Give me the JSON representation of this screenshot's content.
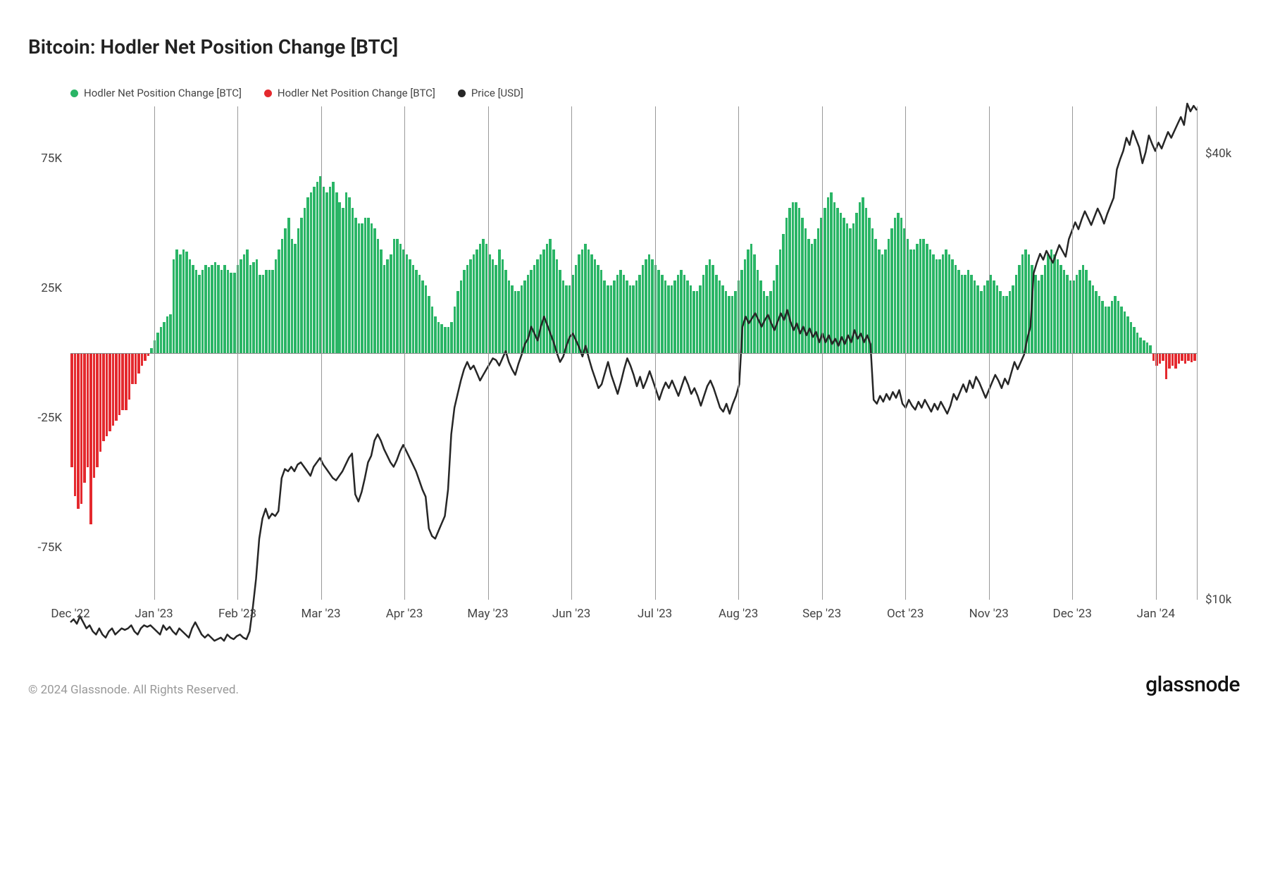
{
  "title": "Bitcoin: Hodler Net Position Change [BTC]",
  "legend": [
    {
      "label": "Hodler Net Position Change [BTC]",
      "color": "#2ab566"
    },
    {
      "label": "Hodler Net Position Change [BTC]",
      "color": "#e4292e"
    },
    {
      "label": "Price [USD]",
      "color": "#262626"
    }
  ],
  "copyright": "© 2024 Glassnode. All Rights Reserved.",
  "brand": "glassnode",
  "colors": {
    "positive_bar": "#2ab566",
    "negative_bar": "#e4292e",
    "price_line": "#262626",
    "background": "#ffffff",
    "grid": "#999999",
    "text": "#444444"
  },
  "y_left": {
    "min": -95000,
    "max": 95000,
    "ticks": [
      {
        "v": 75000,
        "label": "75K"
      },
      {
        "v": 25000,
        "label": "25K"
      },
      {
        "v": -25000,
        "label": "-25K"
      },
      {
        "v": -75000,
        "label": "-75K"
      }
    ]
  },
  "y_right": {
    "type": "log",
    "min_log": 4.0,
    "max_log": 4.666,
    "ticks": [
      {
        "v": 40000,
        "label": "$40k"
      },
      {
        "v": 10000,
        "label": "$10k"
      }
    ]
  },
  "x": {
    "labels": [
      "Dec '22",
      "Jan '23",
      "Feb '23",
      "Mar '23",
      "Apr '23",
      "May '23",
      "Jun '23",
      "Jul '23",
      "Aug '23",
      "Sep '23",
      "Oct '23",
      "Nov '23",
      "Dec '23",
      "Jan '24"
    ]
  },
  "bars": [
    -44000,
    -55000,
    -60000,
    -58000,
    -50000,
    -44000,
    -66000,
    -48000,
    -44000,
    -38000,
    -34000,
    -32000,
    -30000,
    -28000,
    -26000,
    -24000,
    -22000,
    -22000,
    -18000,
    -12000,
    -12000,
    -8000,
    -5000,
    -3000,
    -1000,
    2000,
    5000,
    8000,
    10000,
    12000,
    14000,
    15000,
    36000,
    40000,
    38000,
    40000,
    39000,
    36000,
    34000,
    32000,
    30000,
    32000,
    34000,
    33000,
    34000,
    35000,
    34000,
    32000,
    34000,
    32000,
    31000,
    31000,
    34000,
    36000,
    38000,
    40000,
    34000,
    35000,
    36000,
    30000,
    30000,
    32000,
    32000,
    32000,
    36000,
    40000,
    44000,
    48000,
    52000,
    44000,
    42000,
    48000,
    52000,
    56000,
    60000,
    62000,
    64000,
    66000,
    68000,
    64000,
    62000,
    64000,
    66000,
    62000,
    58000,
    56000,
    62000,
    60000,
    56000,
    52000,
    50000,
    50000,
    52000,
    52000,
    50000,
    48000,
    44000,
    40000,
    34000,
    36000,
    38000,
    44000,
    44000,
    42000,
    40000,
    38000,
    36000,
    34000,
    32000,
    30000,
    28000,
    26000,
    22000,
    18000,
    14000,
    12000,
    11000,
    10000,
    10000,
    12000,
    18000,
    24000,
    28000,
    32000,
    34000,
    36000,
    38000,
    40000,
    42000,
    44000,
    42000,
    38000,
    36000,
    34000,
    40000,
    36000,
    32000,
    28000,
    26000,
    24000,
    24000,
    26000,
    28000,
    30000,
    32000,
    34000,
    36000,
    38000,
    40000,
    42000,
    44000,
    40000,
    36000,
    32000,
    28000,
    26000,
    26000,
    30000,
    34000,
    38000,
    40000,
    42000,
    40000,
    38000,
    36000,
    34000,
    32000,
    28000,
    26000,
    26000,
    28000,
    30000,
    32000,
    30000,
    28000,
    26000,
    26000,
    28000,
    30000,
    34000,
    36000,
    38000,
    36000,
    34000,
    32000,
    30000,
    28000,
    26000,
    26000,
    28000,
    30000,
    32000,
    30000,
    28000,
    26000,
    24000,
    24000,
    26000,
    30000,
    34000,
    36000,
    34000,
    30000,
    28000,
    26000,
    24000,
    22000,
    22000,
    24000,
    28000,
    32000,
    36000,
    40000,
    42000,
    38000,
    32000,
    28000,
    24000,
    22000,
    24000,
    28000,
    34000,
    40000,
    46000,
    52000,
    56000,
    58000,
    58000,
    56000,
    52000,
    48000,
    44000,
    42000,
    44000,
    48000,
    52000,
    56000,
    60000,
    62000,
    58000,
    56000,
    54000,
    52000,
    50000,
    48000,
    50000,
    54000,
    58000,
    60000,
    56000,
    52000,
    48000,
    44000,
    40000,
    38000,
    40000,
    44000,
    48000,
    52000,
    54000,
    52000,
    48000,
    44000,
    40000,
    40000,
    42000,
    44000,
    44000,
    42000,
    40000,
    38000,
    36000,
    36000,
    38000,
    40000,
    38000,
    36000,
    34000,
    32000,
    30000,
    30000,
    32000,
    30000,
    28000,
    26000,
    24000,
    26000,
    28000,
    30000,
    28000,
    26000,
    24000,
    22000,
    22000,
    24000,
    26000,
    30000,
    34000,
    38000,
    40000,
    38000,
    34000,
    30000,
    28000,
    30000,
    34000,
    38000,
    40000,
    38000,
    36000,
    34000,
    32000,
    30000,
    28000,
    28000,
    30000,
    32000,
    34000,
    32000,
    28000,
    26000,
    24000,
    22000,
    20000,
    18000,
    18000,
    20000,
    22000,
    20000,
    18000,
    16000,
    14000,
    12000,
    10000,
    8000,
    6000,
    5000,
    4000,
    3000,
    -3000,
    -5000,
    -4000,
    -3000,
    -10000,
    -6000,
    -5000,
    -6000,
    -4000,
    -3000,
    -4000,
    -3000,
    -3500,
    -3000
  ],
  "price": [
    17000,
    17100,
    16950,
    17200,
    17000,
    16800,
    16900,
    16700,
    16600,
    16800,
    16600,
    16500,
    16700,
    16800,
    16600,
    16700,
    16800,
    16750,
    16800,
    16900,
    16700,
    16600,
    16800,
    16900,
    16850,
    16900,
    16800,
    16700,
    16600,
    16900,
    16750,
    16850,
    16700,
    16600,
    16800,
    16700,
    16600,
    16500,
    16800,
    17000,
    16800,
    16600,
    16500,
    16600,
    16500,
    16400,
    16450,
    16500,
    16400,
    16600,
    16500,
    16450,
    16550,
    16600,
    16500,
    16450,
    16700,
    17500,
    18500,
    20000,
    20800,
    21200,
    20800,
    21000,
    20900,
    21100,
    22500,
    22900,
    22800,
    23000,
    22800,
    23100,
    23200,
    23000,
    22800,
    22600,
    23000,
    23200,
    23400,
    23100,
    22900,
    22700,
    22500,
    22400,
    22600,
    22800,
    23100,
    23400,
    23600,
    21800,
    21500,
    21900,
    22500,
    23200,
    23500,
    24200,
    24500,
    24200,
    23800,
    23500,
    23200,
    23000,
    23300,
    23700,
    24000,
    23700,
    23400,
    23100,
    22800,
    22400,
    22000,
    21700,
    20400,
    20100,
    20000,
    20300,
    20600,
    20900,
    22000,
    24500,
    25800,
    26500,
    27200,
    27800,
    28200,
    27800,
    28000,
    27600,
    27200,
    27500,
    27800,
    28100,
    28400,
    28300,
    28000,
    28400,
    28800,
    28200,
    27800,
    27500,
    28100,
    28600,
    29200,
    29500,
    30200,
    29800,
    29400,
    30200,
    30800,
    30300,
    29800,
    29300,
    28700,
    28200,
    28500,
    29100,
    29600,
    29800,
    29400,
    29000,
    28500,
    29100,
    28400,
    27800,
    27300,
    26800,
    27000,
    27600,
    28200,
    27500,
    27000,
    26500,
    27100,
    27800,
    28400,
    28000,
    27500,
    26900,
    27400,
    26800,
    27200,
    27700,
    27200,
    26700,
    26200,
    26700,
    27100,
    26800,
    27200,
    26800,
    26400,
    26900,
    27400,
    27000,
    26500,
    26800,
    26400,
    25900,
    26400,
    26900,
    27200,
    26800,
    26300,
    25800,
    25600,
    26000,
    25500,
    26000,
    26400,
    27000,
    30200,
    30800,
    30400,
    30700,
    31000,
    30600,
    30200,
    30600,
    30900,
    30400,
    30000,
    30500,
    31000,
    30600,
    31200,
    30500,
    30000,
    30400,
    29800,
    30200,
    29700,
    30100,
    29600,
    29900,
    29300,
    29800,
    29300,
    29700,
    29200,
    29500,
    29100,
    29600,
    29200,
    29700,
    29300,
    30000,
    29500,
    29800,
    29300,
    29700,
    29200,
    26200,
    26000,
    26400,
    26100,
    26500,
    26200,
    26600,
    26300,
    26700,
    26000,
    25800,
    26200,
    25900,
    25700,
    26100,
    25800,
    26200,
    25900,
    25600,
    26000,
    25700,
    26100,
    25800,
    25500,
    25900,
    26500,
    26200,
    26600,
    27000,
    26600,
    27200,
    26800,
    27400,
    27100,
    26700,
    26300,
    26700,
    27100,
    27500,
    27200,
    26800,
    27300,
    27000,
    27600,
    28200,
    27800,
    28200,
    28600,
    29500,
    30200,
    33500,
    34200,
    34800,
    34400,
    35000,
    34600,
    34200,
    34800,
    35400,
    35000,
    34600,
    35800,
    36400,
    37000,
    36500,
    37200,
    37800,
    37300,
    36800,
    37400,
    38000,
    37500,
    36900,
    37600,
    38200,
    38800,
    41000,
    41800,
    42500,
    43600,
    43000,
    44200,
    43500,
    42800,
    41500,
    42400,
    43800,
    43100,
    42500,
    43200,
    42700,
    43400,
    44100,
    43600,
    44200,
    44800,
    45400,
    44700,
    46600,
    45900,
    46400,
    46000
  ]
}
